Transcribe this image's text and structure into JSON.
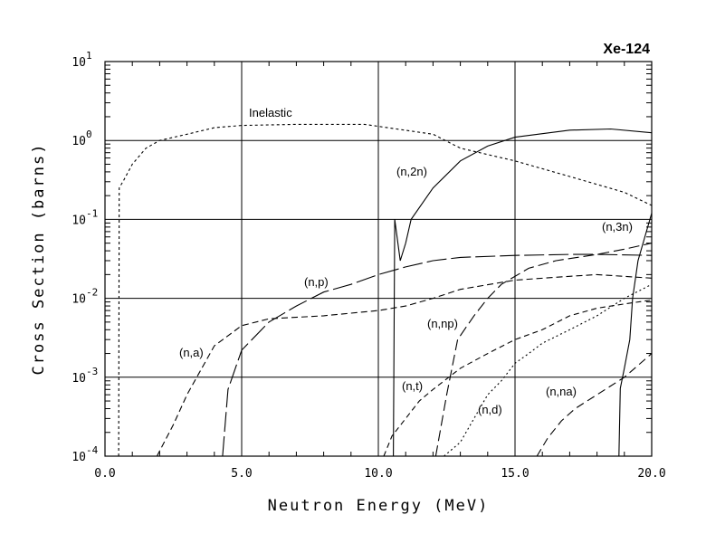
{
  "chart_data": {
    "type": "line",
    "title": "Xe-124",
    "xlabel": "Neutron Energy (MeV)",
    "ylabel": "Cross Section (barns)",
    "xlim": [
      0,
      20
    ],
    "ylim": [
      0.0001,
      10
    ],
    "yscale": "log",
    "grid": true,
    "x_ticks": [
      "0.0",
      "5.0",
      "10.0",
      "15.0",
      "20.0"
    ],
    "y_ticks": [
      {
        "base": "10",
        "exp": "1"
      },
      {
        "base": "10",
        "exp": "0"
      },
      {
        "base": "10",
        "exp": "-1"
      },
      {
        "base": "10",
        "exp": "-2"
      },
      {
        "base": "10",
        "exp": "-3"
      },
      {
        "base": "10",
        "exp": "-4"
      }
    ],
    "y_tick_values": [
      10,
      1,
      0.1,
      0.01,
      0.001,
      0.0001
    ],
    "series": [
      {
        "name": "Inelastic",
        "dash": "3,3",
        "points": [
          [
            0.5,
            0.0001
          ],
          [
            0.52,
            0.25
          ],
          [
            0.7,
            0.32
          ],
          [
            1.0,
            0.5
          ],
          [
            1.5,
            0.8
          ],
          [
            2.0,
            1.0
          ],
          [
            3.0,
            1.2
          ],
          [
            4.0,
            1.45
          ],
          [
            5.0,
            1.55
          ],
          [
            7.0,
            1.6
          ],
          [
            9.5,
            1.6
          ],
          [
            12.0,
            1.2
          ],
          [
            13.0,
            0.8
          ],
          [
            15.0,
            0.55
          ],
          [
            17.0,
            0.35
          ],
          [
            19.0,
            0.22
          ],
          [
            20.0,
            0.15
          ]
        ]
      },
      {
        "name": "(n,2n)",
        "dash": "",
        "points": [
          [
            10.55,
            0.0001
          ],
          [
            10.6,
            0.1
          ],
          [
            10.8,
            0.03
          ],
          [
            11.0,
            0.05
          ],
          [
            11.2,
            0.1
          ],
          [
            12.0,
            0.25
          ],
          [
            13.0,
            0.55
          ],
          [
            14.0,
            0.85
          ],
          [
            15.0,
            1.1
          ],
          [
            17.0,
            1.35
          ],
          [
            18.5,
            1.4
          ],
          [
            20.0,
            1.25
          ]
        ]
      },
      {
        "name": "(n,3n)",
        "dash": "",
        "points": [
          [
            18.8,
            0.0001
          ],
          [
            18.85,
            0.00072
          ],
          [
            19.0,
            0.0013
          ],
          [
            19.2,
            0.003
          ],
          [
            19.3,
            0.01
          ],
          [
            19.5,
            0.03
          ],
          [
            20.0,
            0.12
          ]
        ]
      },
      {
        "name": "(n,p)",
        "dash": "22,5",
        "points": [
          [
            4.3,
            0.0001
          ],
          [
            4.5,
            0.0007
          ],
          [
            5.0,
            0.0022
          ],
          [
            6.0,
            0.005
          ],
          [
            7.0,
            0.008
          ],
          [
            8.0,
            0.012
          ],
          [
            9.0,
            0.015
          ],
          [
            10.0,
            0.02
          ],
          [
            11.0,
            0.025
          ],
          [
            12.0,
            0.03
          ],
          [
            13.0,
            0.033
          ],
          [
            15.0,
            0.035
          ],
          [
            17.0,
            0.036
          ],
          [
            18.0,
            0.036
          ],
          [
            20.0,
            0.035
          ]
        ]
      },
      {
        "name": "(n,a)",
        "dash": "7,4",
        "points": [
          [
            1.9,
            0.0001
          ],
          [
            2.5,
            0.00025
          ],
          [
            3.0,
            0.0006
          ],
          [
            4.0,
            0.0025
          ],
          [
            5.0,
            0.0045
          ],
          [
            6.0,
            0.0055
          ],
          [
            8.0,
            0.006
          ],
          [
            10.0,
            0.007
          ],
          [
            11.0,
            0.008
          ],
          [
            12.0,
            0.01
          ],
          [
            13.0,
            0.013
          ],
          [
            15.0,
            0.017
          ],
          [
            17.0,
            0.019
          ],
          [
            18.0,
            0.02
          ],
          [
            20.0,
            0.018
          ]
        ]
      },
      {
        "name": "(n,np)",
        "dash": "12,5",
        "points": [
          [
            12.1,
            0.0001
          ],
          [
            12.5,
            0.0006
          ],
          [
            12.9,
            0.003
          ],
          [
            13.5,
            0.006
          ],
          [
            14.0,
            0.01
          ],
          [
            14.5,
            0.015
          ],
          [
            15.5,
            0.024
          ],
          [
            16.5,
            0.03
          ],
          [
            18.0,
            0.036
          ],
          [
            19.0,
            0.042
          ],
          [
            20.0,
            0.05
          ]
        ]
      },
      {
        "name": "(n,t)",
        "dash": "6,4",
        "points": [
          [
            10.2,
            0.0001
          ],
          [
            10.5,
            0.00018
          ],
          [
            11.0,
            0.0003
          ],
          [
            11.5,
            0.0005
          ],
          [
            12.0,
            0.0007
          ],
          [
            13.0,
            0.0013
          ],
          [
            14.0,
            0.002
          ],
          [
            15.0,
            0.003
          ],
          [
            16.0,
            0.004
          ],
          [
            17.0,
            0.006
          ],
          [
            18.0,
            0.0075
          ],
          [
            19.0,
            0.0085
          ],
          [
            20.0,
            0.0095
          ]
        ]
      },
      {
        "name": "(n,d)",
        "dash": "2,3",
        "points": [
          [
            12.4,
            0.0001
          ],
          [
            13.0,
            0.00015
          ],
          [
            13.5,
            0.0003
          ],
          [
            14.0,
            0.0006
          ],
          [
            14.5,
            0.0009
          ],
          [
            15.0,
            0.0015
          ],
          [
            15.5,
            0.002
          ],
          [
            16.0,
            0.0027
          ],
          [
            17.0,
            0.004
          ],
          [
            18.0,
            0.006
          ],
          [
            19.0,
            0.01
          ],
          [
            20.0,
            0.015
          ]
        ]
      },
      {
        "name": "(n,na)",
        "dash": "9,5",
        "points": [
          [
            15.8,
            0.0001
          ],
          [
            16.2,
            0.00017
          ],
          [
            16.7,
            0.00028
          ],
          [
            17.2,
            0.0004
          ],
          [
            18.0,
            0.0006
          ],
          [
            19.0,
            0.001
          ],
          [
            20.0,
            0.002
          ]
        ]
      }
    ]
  }
}
